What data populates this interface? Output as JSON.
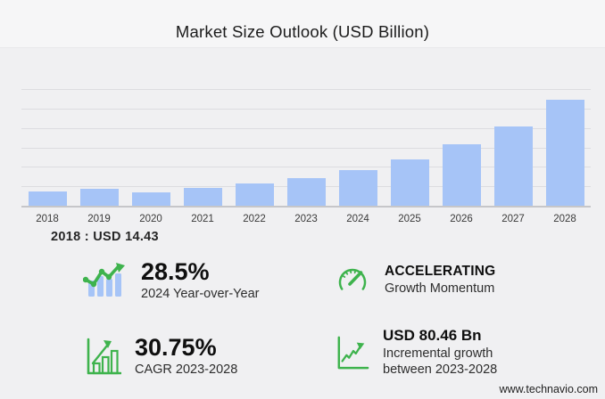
{
  "header": {
    "title": "Market Size Outlook (USD Billion)"
  },
  "chart_data": {
    "type": "bar",
    "title": "Market Size Outlook (USD Billion)",
    "xlabel": "",
    "ylabel": "",
    "categories": [
      "2018",
      "2019",
      "2020",
      "2021",
      "2022",
      "2023",
      "2024",
      "2025",
      "2026",
      "2027",
      "2028"
    ],
    "values": [
      14.43,
      17.8,
      14.1,
      18.1,
      22.7,
      28.52,
      36.65,
      47.6,
      62.8,
      81.9,
      108.98
    ],
    "ylim": [
      0,
      120
    ],
    "grid": true,
    "legend": false,
    "gridline_step": 20,
    "annotation": "2018 : USD  14.43"
  },
  "stats": [
    {
      "icon": "yoy-growth-chart-icon",
      "value": "28.5%",
      "label": "2024 Year-over-Year"
    },
    {
      "icon": "speedometer-icon",
      "value": "ACCELERATING",
      "label": "Growth Momentum"
    },
    {
      "icon": "cagr-bars-arrow-icon",
      "value": "30.75%",
      "label": "CAGR 2023-2028"
    },
    {
      "icon": "incremental-line-chart-icon",
      "value": "USD 80.46 Bn",
      "label": "Incremental growth between 2023-2028"
    }
  ],
  "footer": {
    "source": "www.technavio.com"
  },
  "colors": {
    "bar_blue": "#a6c4f7",
    "icon_green": "#3eb34d",
    "background": "#f0f0f2",
    "gridline": "#dcdce0",
    "axis": "#c6c6c9"
  }
}
